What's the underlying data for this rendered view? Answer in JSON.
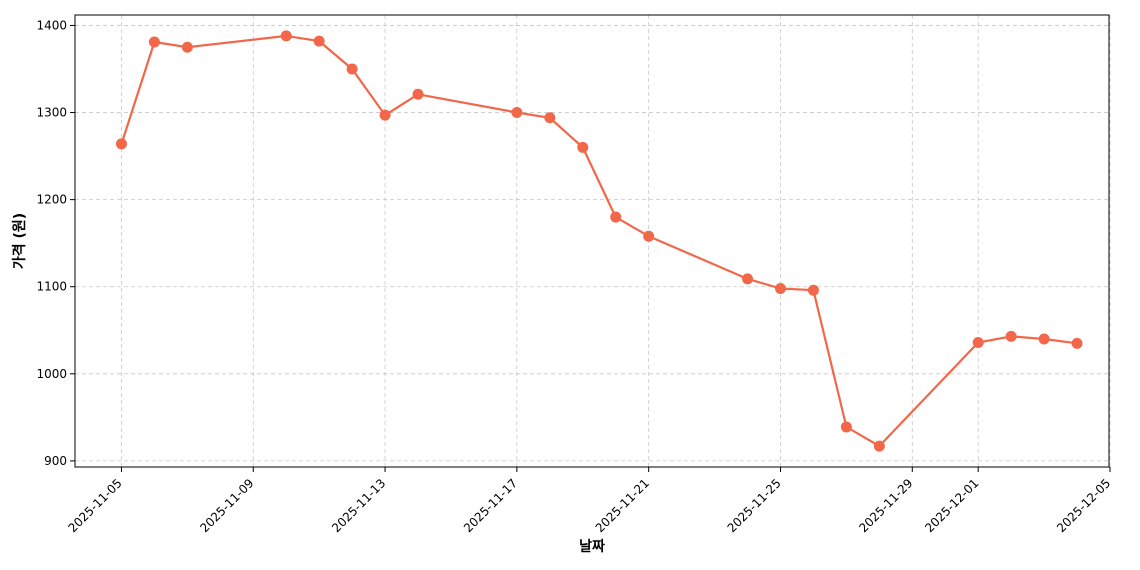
{
  "chart_data": {
    "type": "line",
    "title": "",
    "xlabel": "날짜",
    "ylabel": "가격 (원)",
    "x_ticks": [
      "2025-11-05",
      "2025-11-09",
      "2025-11-13",
      "2025-11-17",
      "2025-11-21",
      "2025-11-25",
      "2025-11-29",
      "2025-12-01",
      "2025-12-05"
    ],
    "y_ticks": [
      900,
      1000,
      1100,
      1200,
      1300,
      1400
    ],
    "xlim": [
      "2025-11-03",
      "2025-12-05"
    ],
    "ylim": [
      893,
      1412
    ],
    "grid": true,
    "legend": "none",
    "series": [
      {
        "color": "#F26749",
        "points": [
          {
            "x": "2025-11-05",
            "y": 1264
          },
          {
            "x": "2025-11-06",
            "y": 1381
          },
          {
            "x": "2025-11-07",
            "y": 1375
          },
          {
            "x": "2025-11-10",
            "y": 1388
          },
          {
            "x": "2025-11-11",
            "y": 1382
          },
          {
            "x": "2025-11-12",
            "y": 1350
          },
          {
            "x": "2025-11-13",
            "y": 1297
          },
          {
            "x": "2025-11-14",
            "y": 1321
          },
          {
            "x": "2025-11-17",
            "y": 1300
          },
          {
            "x": "2025-11-18",
            "y": 1294
          },
          {
            "x": "2025-11-19",
            "y": 1260
          },
          {
            "x": "2025-11-20",
            "y": 1180
          },
          {
            "x": "2025-11-21",
            "y": 1158
          },
          {
            "x": "2025-11-24",
            "y": 1109
          },
          {
            "x": "2025-11-25",
            "y": 1098
          },
          {
            "x": "2025-11-26",
            "y": 1096
          },
          {
            "x": "2025-11-27",
            "y": 939
          },
          {
            "x": "2025-11-28",
            "y": 917
          },
          {
            "x": "2025-12-01",
            "y": 1036
          },
          {
            "x": "2025-12-02",
            "y": 1043
          },
          {
            "x": "2025-12-03",
            "y": 1040
          },
          {
            "x": "2025-12-04",
            "y": 1035
          }
        ]
      }
    ]
  }
}
